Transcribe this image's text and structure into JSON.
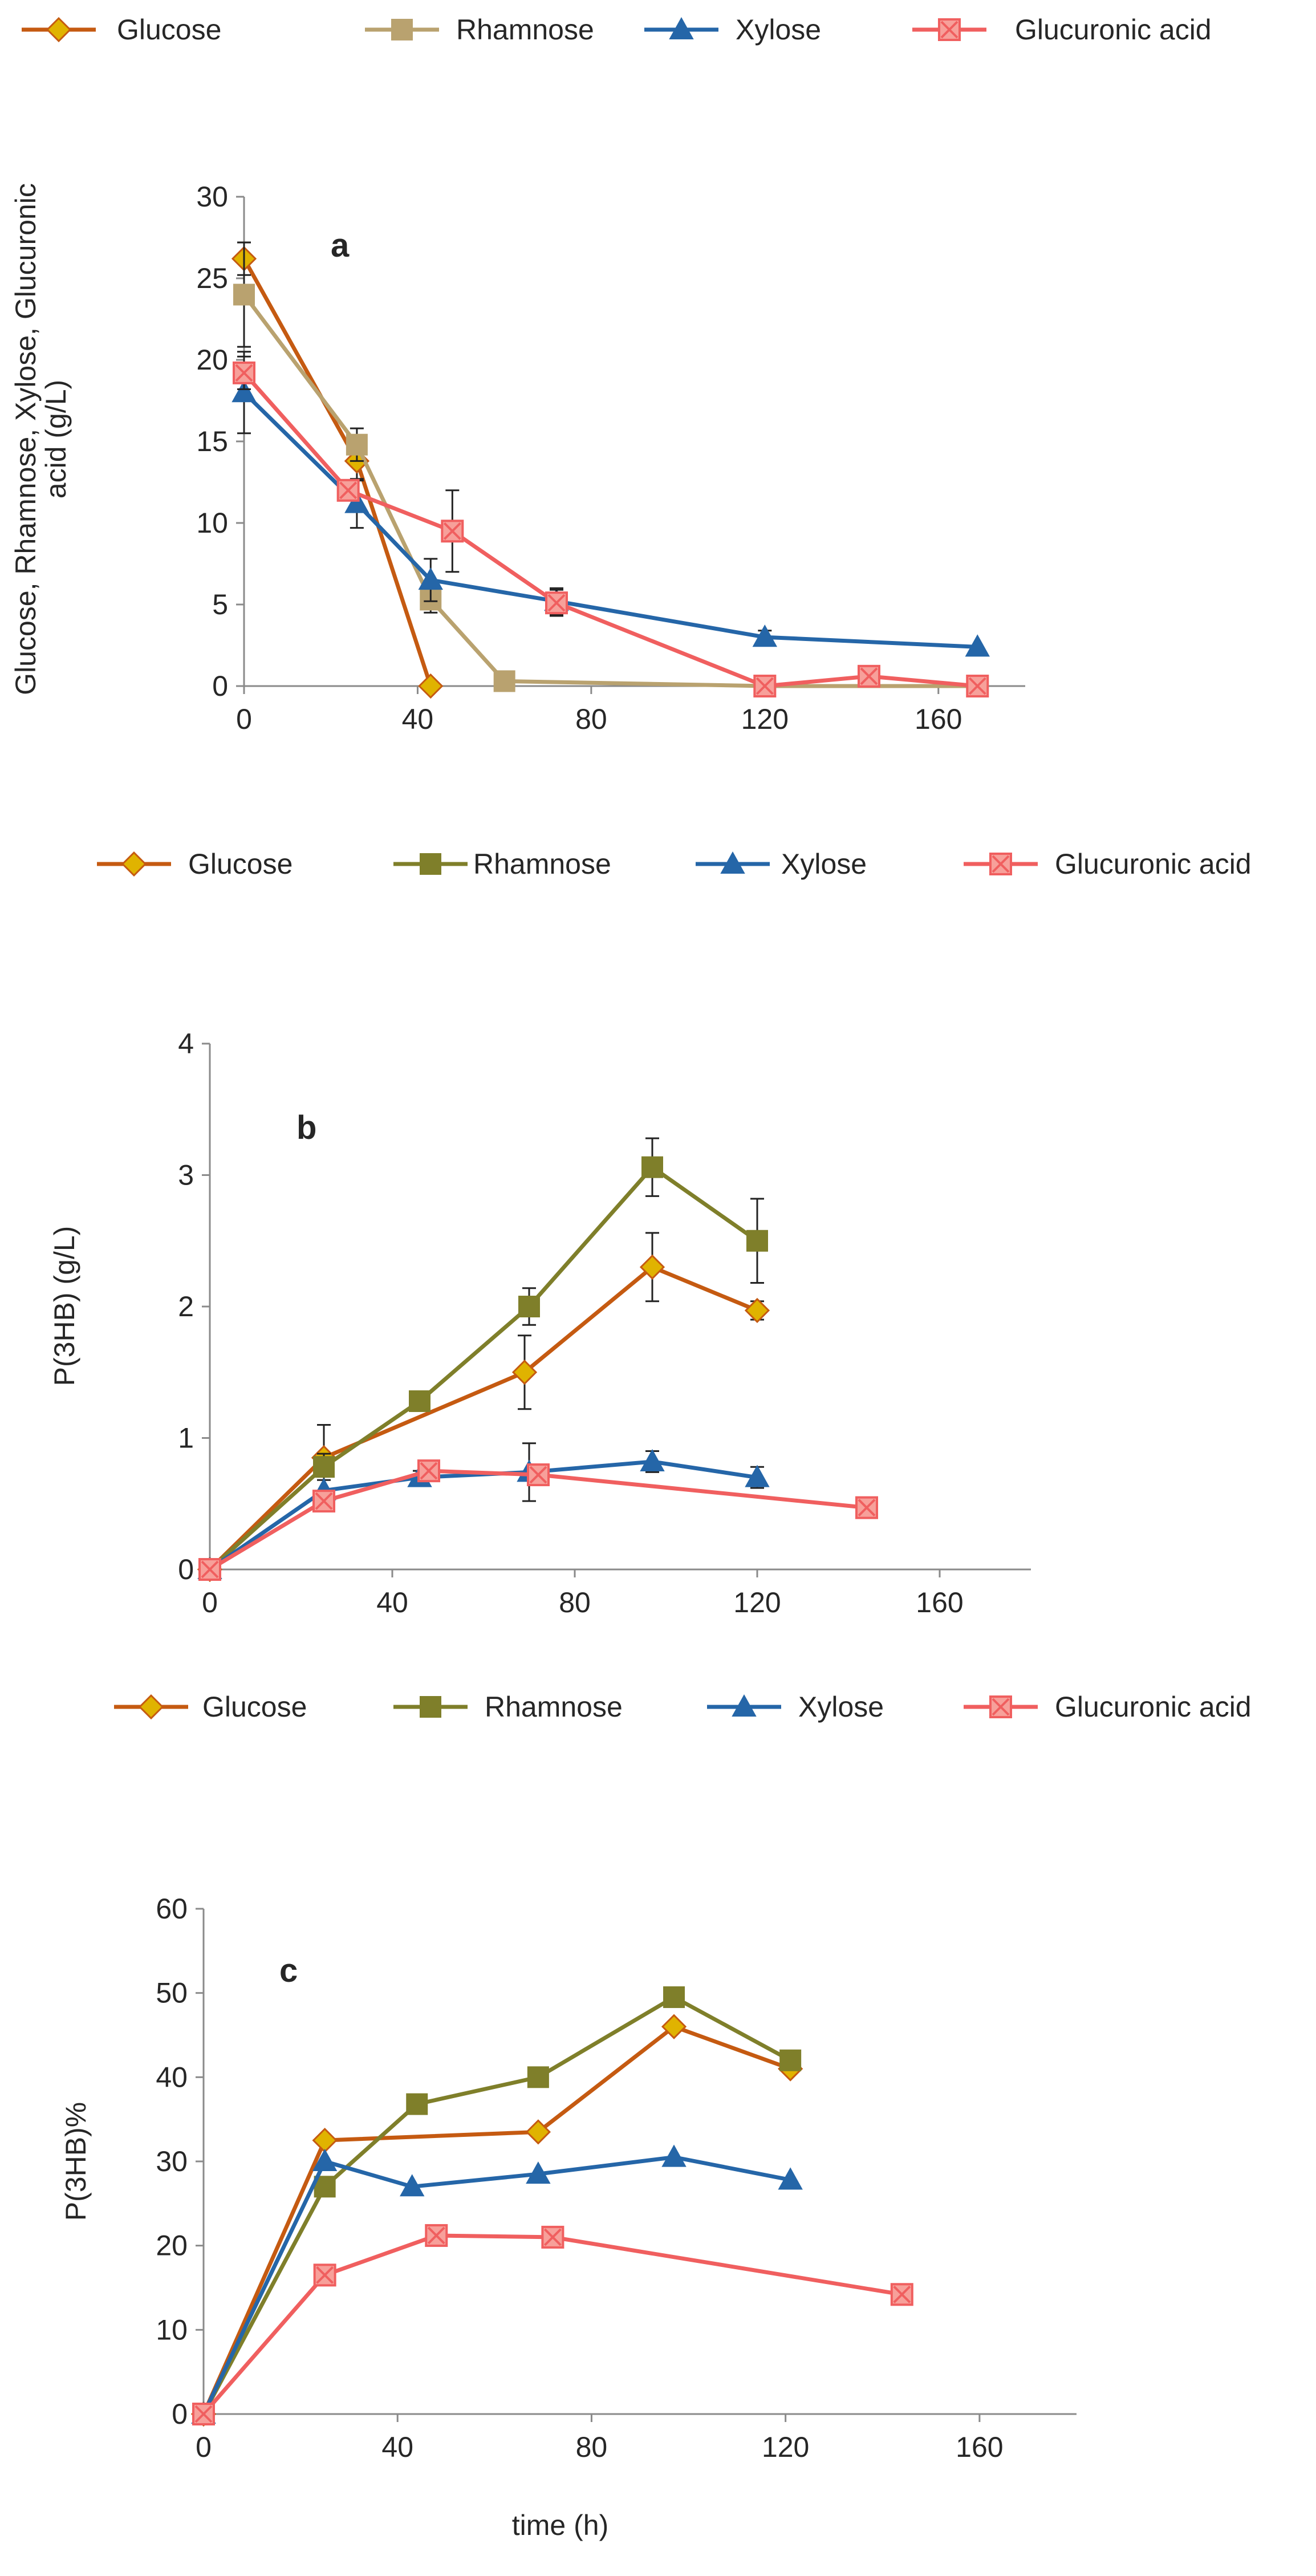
{
  "chart_data": [
    {
      "type": "line",
      "panel_label": "a",
      "title": "",
      "xlabel": "",
      "ylabel": "Glucose, Rhamnose, Xylose, Glucuronic acid (g/L)",
      "ylabel_lines": [
        "Glucose, Rhamnose, Xylose, Glucuronic",
        "acid (g/L)"
      ],
      "xlim": [
        0,
        180
      ],
      "ylim": [
        0,
        30
      ],
      "xticks": [
        "0",
        "40",
        "80",
        "120",
        "160"
      ],
      "xtick_values": [
        0,
        40,
        80,
        120,
        160
      ],
      "yticks": [
        "0",
        "5",
        "10",
        "15",
        "20",
        "25",
        "30"
      ],
      "ytick_values": [
        0,
        5,
        10,
        15,
        20,
        25,
        30
      ],
      "grid": false,
      "legend_position": "top",
      "series": [
        {
          "name": "Glucose",
          "color": "#c55a11",
          "marker": "diamond",
          "x": [
            0,
            26,
            43
          ],
          "y": [
            26.2,
            13.8,
            0
          ],
          "err": [
            1.0,
            1.2,
            0
          ]
        },
        {
          "name": "Rhamnose",
          "color": "#b9a26f",
          "marker": "square",
          "x": [
            0,
            26,
            43,
            60,
            120,
            169
          ],
          "y": [
            24,
            14.8,
            5.3,
            0.3,
            0,
            0
          ],
          "err": [
            3.2,
            1.0,
            0.8,
            0,
            0,
            0
          ]
        },
        {
          "name": "Xylose",
          "color": "#2566a8",
          "marker": "triangle",
          "x": [
            0,
            26,
            43,
            72,
            120,
            169
          ],
          "y": [
            18,
            11.2,
            6.5,
            5.2,
            3.0,
            2.4
          ],
          "err": [
            2.5,
            1.5,
            1.3,
            0.8,
            0.4,
            0
          ]
        },
        {
          "name": "Glucuronic acid",
          "color": "#f05f5f",
          "marker": "square-x",
          "x": [
            0,
            24,
            48,
            72,
            120,
            144,
            169
          ],
          "y": [
            19.2,
            12,
            9.5,
            5.1,
            0,
            0.6,
            0
          ],
          "err": [
            1.0,
            0.6,
            2.5,
            0.8,
            0,
            0,
            0
          ]
        }
      ]
    },
    {
      "type": "line",
      "panel_label": "b",
      "title": "",
      "xlabel": "",
      "ylabel": "P(3HB) (g/L)",
      "xlim": [
        0,
        180
      ],
      "ylim": [
        0,
        4
      ],
      "xticks": [
        "0",
        "40",
        "80",
        "120",
        "160"
      ],
      "xtick_values": [
        0,
        40,
        80,
        120,
        160
      ],
      "yticks": [
        "0",
        "1",
        "2",
        "3",
        "4"
      ],
      "ytick_values": [
        0,
        1,
        2,
        3,
        4
      ],
      "grid": false,
      "legend_position": "top",
      "series": [
        {
          "name": "Glucose",
          "color": "#c55a11",
          "marker": "diamond",
          "x": [
            0,
            25,
            69,
            97,
            120
          ],
          "y": [
            0,
            0.85,
            1.5,
            2.3,
            1.97
          ],
          "err": [
            0,
            0.25,
            0.28,
            0.26,
            0.07
          ]
        },
        {
          "name": "Rhamnose",
          "color": "#7f7f2a",
          "marker": "square",
          "x": [
            0,
            25,
            46,
            70,
            97,
            120
          ],
          "y": [
            0,
            0.78,
            1.28,
            2.0,
            3.06,
            2.5
          ],
          "err": [
            0,
            0.1,
            0.05,
            0.14,
            0.22,
            0.32
          ]
        },
        {
          "name": "Xylose",
          "color": "#2566a8",
          "marker": "triangle",
          "x": [
            0,
            25,
            46,
            70,
            97,
            120
          ],
          "y": [
            0,
            0.6,
            0.7,
            0.74,
            0.82,
            0.7
          ],
          "err": [
            0,
            0,
            0.05,
            0.22,
            0.08,
            0.08
          ]
        },
        {
          "name": "Glucuronic acid",
          "color": "#f05f5f",
          "marker": "square-x",
          "x": [
            0,
            25,
            48,
            72,
            144
          ],
          "y": [
            0,
            0.52,
            0.75,
            0.72,
            0.47
          ],
          "err": [
            0,
            0,
            0,
            0,
            0
          ]
        }
      ]
    },
    {
      "type": "line",
      "panel_label": "c",
      "title": "",
      "xlabel": "time (h)",
      "ylabel": "P(3HB)%",
      "xlim": [
        0,
        180
      ],
      "ylim": [
        0,
        60
      ],
      "xticks": [
        "0",
        "40",
        "80",
        "120",
        "160"
      ],
      "xtick_values": [
        0,
        40,
        80,
        120,
        160
      ],
      "yticks": [
        "0",
        "10",
        "20",
        "30",
        "40",
        "50",
        "60"
      ],
      "ytick_values": [
        0,
        10,
        20,
        30,
        40,
        50,
        60
      ],
      "grid": false,
      "legend_position": "top",
      "series": [
        {
          "name": "Glucose",
          "color": "#c55a11",
          "marker": "diamond",
          "x": [
            0,
            25,
            69,
            97,
            121
          ],
          "y": [
            0,
            32.5,
            33.5,
            46,
            41
          ],
          "err": [
            0,
            0,
            0,
            0,
            0
          ]
        },
        {
          "name": "Rhamnose",
          "color": "#7f7f2a",
          "marker": "square",
          "x": [
            0,
            25,
            44,
            69,
            97,
            121
          ],
          "y": [
            0,
            27,
            36.8,
            40,
            49.5,
            42
          ],
          "err": [
            0,
            0,
            0,
            0,
            0,
            0
          ]
        },
        {
          "name": "Xylose",
          "color": "#2566a8",
          "marker": "triangle",
          "x": [
            0,
            25,
            43,
            69,
            97,
            121
          ],
          "y": [
            0,
            30,
            27,
            28.5,
            30.5,
            27.8
          ],
          "err": [
            0,
            0,
            0,
            0,
            0,
            0
          ]
        },
        {
          "name": "Glucuronic acid",
          "color": "#f05f5f",
          "marker": "square-x",
          "x": [
            0,
            25,
            48,
            72,
            144
          ],
          "y": [
            0,
            16.5,
            21.2,
            21,
            14.2
          ],
          "err": [
            0,
            0,
            0,
            0,
            0
          ]
        }
      ]
    }
  ]
}
